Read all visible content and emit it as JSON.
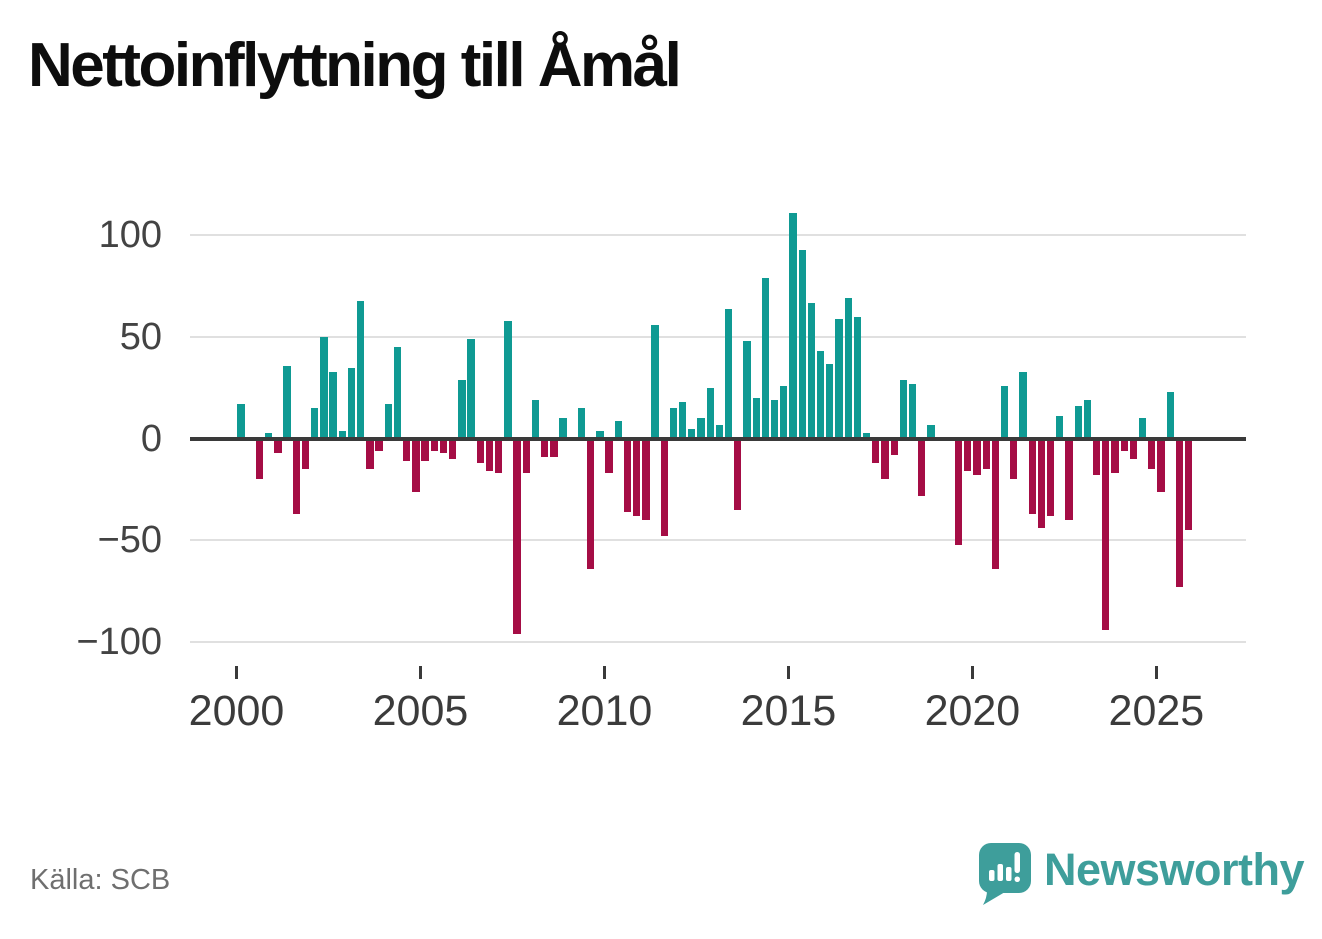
{
  "title": "Nettoinflyttning till Åmål",
  "source": {
    "label": "Källa: SCB"
  },
  "brand": {
    "name": "Newsworthy",
    "logo_icon": "speech-bubble-bar-chart-exclamation"
  },
  "colors": {
    "positive": "#0f9a93",
    "negative": "#a50d45",
    "brand_teal": "#3e9e9b",
    "axis_line": "#3a3a3a",
    "gridline": "#e0e0e0",
    "title_text": "#0d0d0d",
    "y_tick_text": "#434343",
    "x_tick_text": "#3b3b3b",
    "source_text": "#6f6f6f"
  },
  "chart_data": {
    "type": "bar",
    "title": "Nettoinflyttning till Åmål",
    "xlabel": "",
    "ylabel": "",
    "frequency": "quarterly",
    "start_period": "2000Q1",
    "end_period": "2025Q4",
    "values_by_year": {
      "2000": [
        17,
        0,
        -20,
        3
      ],
      "2001": [
        -7,
        36,
        -37,
        -15
      ],
      "2002": [
        15,
        50,
        33,
        4
      ],
      "2003": [
        35,
        68,
        -15,
        -6
      ],
      "2004": [
        17,
        45,
        -11,
        -26
      ],
      "2005": [
        -11,
        -6,
        -7,
        -10
      ],
      "2006": [
        29,
        49,
        -12,
        -16
      ],
      "2007": [
        -17,
        58,
        -96,
        -17
      ],
      "2008": [
        19,
        -9,
        -9,
        10
      ],
      "2009": [
        0,
        15,
        -64,
        4
      ],
      "2010": [
        -17,
        9,
        -36,
        -38
      ],
      "2011": [
        -40,
        56,
        -48,
        15
      ],
      "2012": [
        18,
        5,
        10,
        25
      ],
      "2013": [
        7,
        64,
        -35,
        48
      ],
      "2014": [
        20,
        79,
        19,
        26
      ],
      "2015": [
        111,
        93,
        67,
        43
      ],
      "2016": [
        37,
        59,
        69,
        60
      ],
      "2017": [
        3,
        -12,
        -20,
        -8
      ],
      "2018": [
        29,
        27,
        -28,
        7
      ],
      "2019": [
        0,
        0,
        -52,
        -16
      ],
      "2020": [
        -18,
        -15,
        -64,
        26
      ],
      "2021": [
        -20,
        33,
        -37,
        -44
      ],
      "2022": [
        -38,
        11,
        -40,
        16
      ],
      "2023": [
        19,
        -18,
        -94,
        -17
      ],
      "2024": [
        -6,
        -10,
        10,
        -15
      ],
      "2025": [
        -26,
        23,
        -73,
        -45
      ]
    },
    "x_tick_labels": [
      "2000",
      "2005",
      "2010",
      "2015",
      "2020",
      "2025"
    ],
    "y_ticks": [
      100,
      50,
      0,
      -50,
      -100
    ],
    "y_tick_labels": [
      "100",
      "50",
      "0",
      "−50",
      "−100"
    ],
    "ylim": [
      -112,
      122
    ],
    "grid": "horizontal",
    "legend": "none",
    "positive_color": "#0f9a93",
    "negative_color": "#a50d45",
    "source": "Källa: SCB"
  }
}
